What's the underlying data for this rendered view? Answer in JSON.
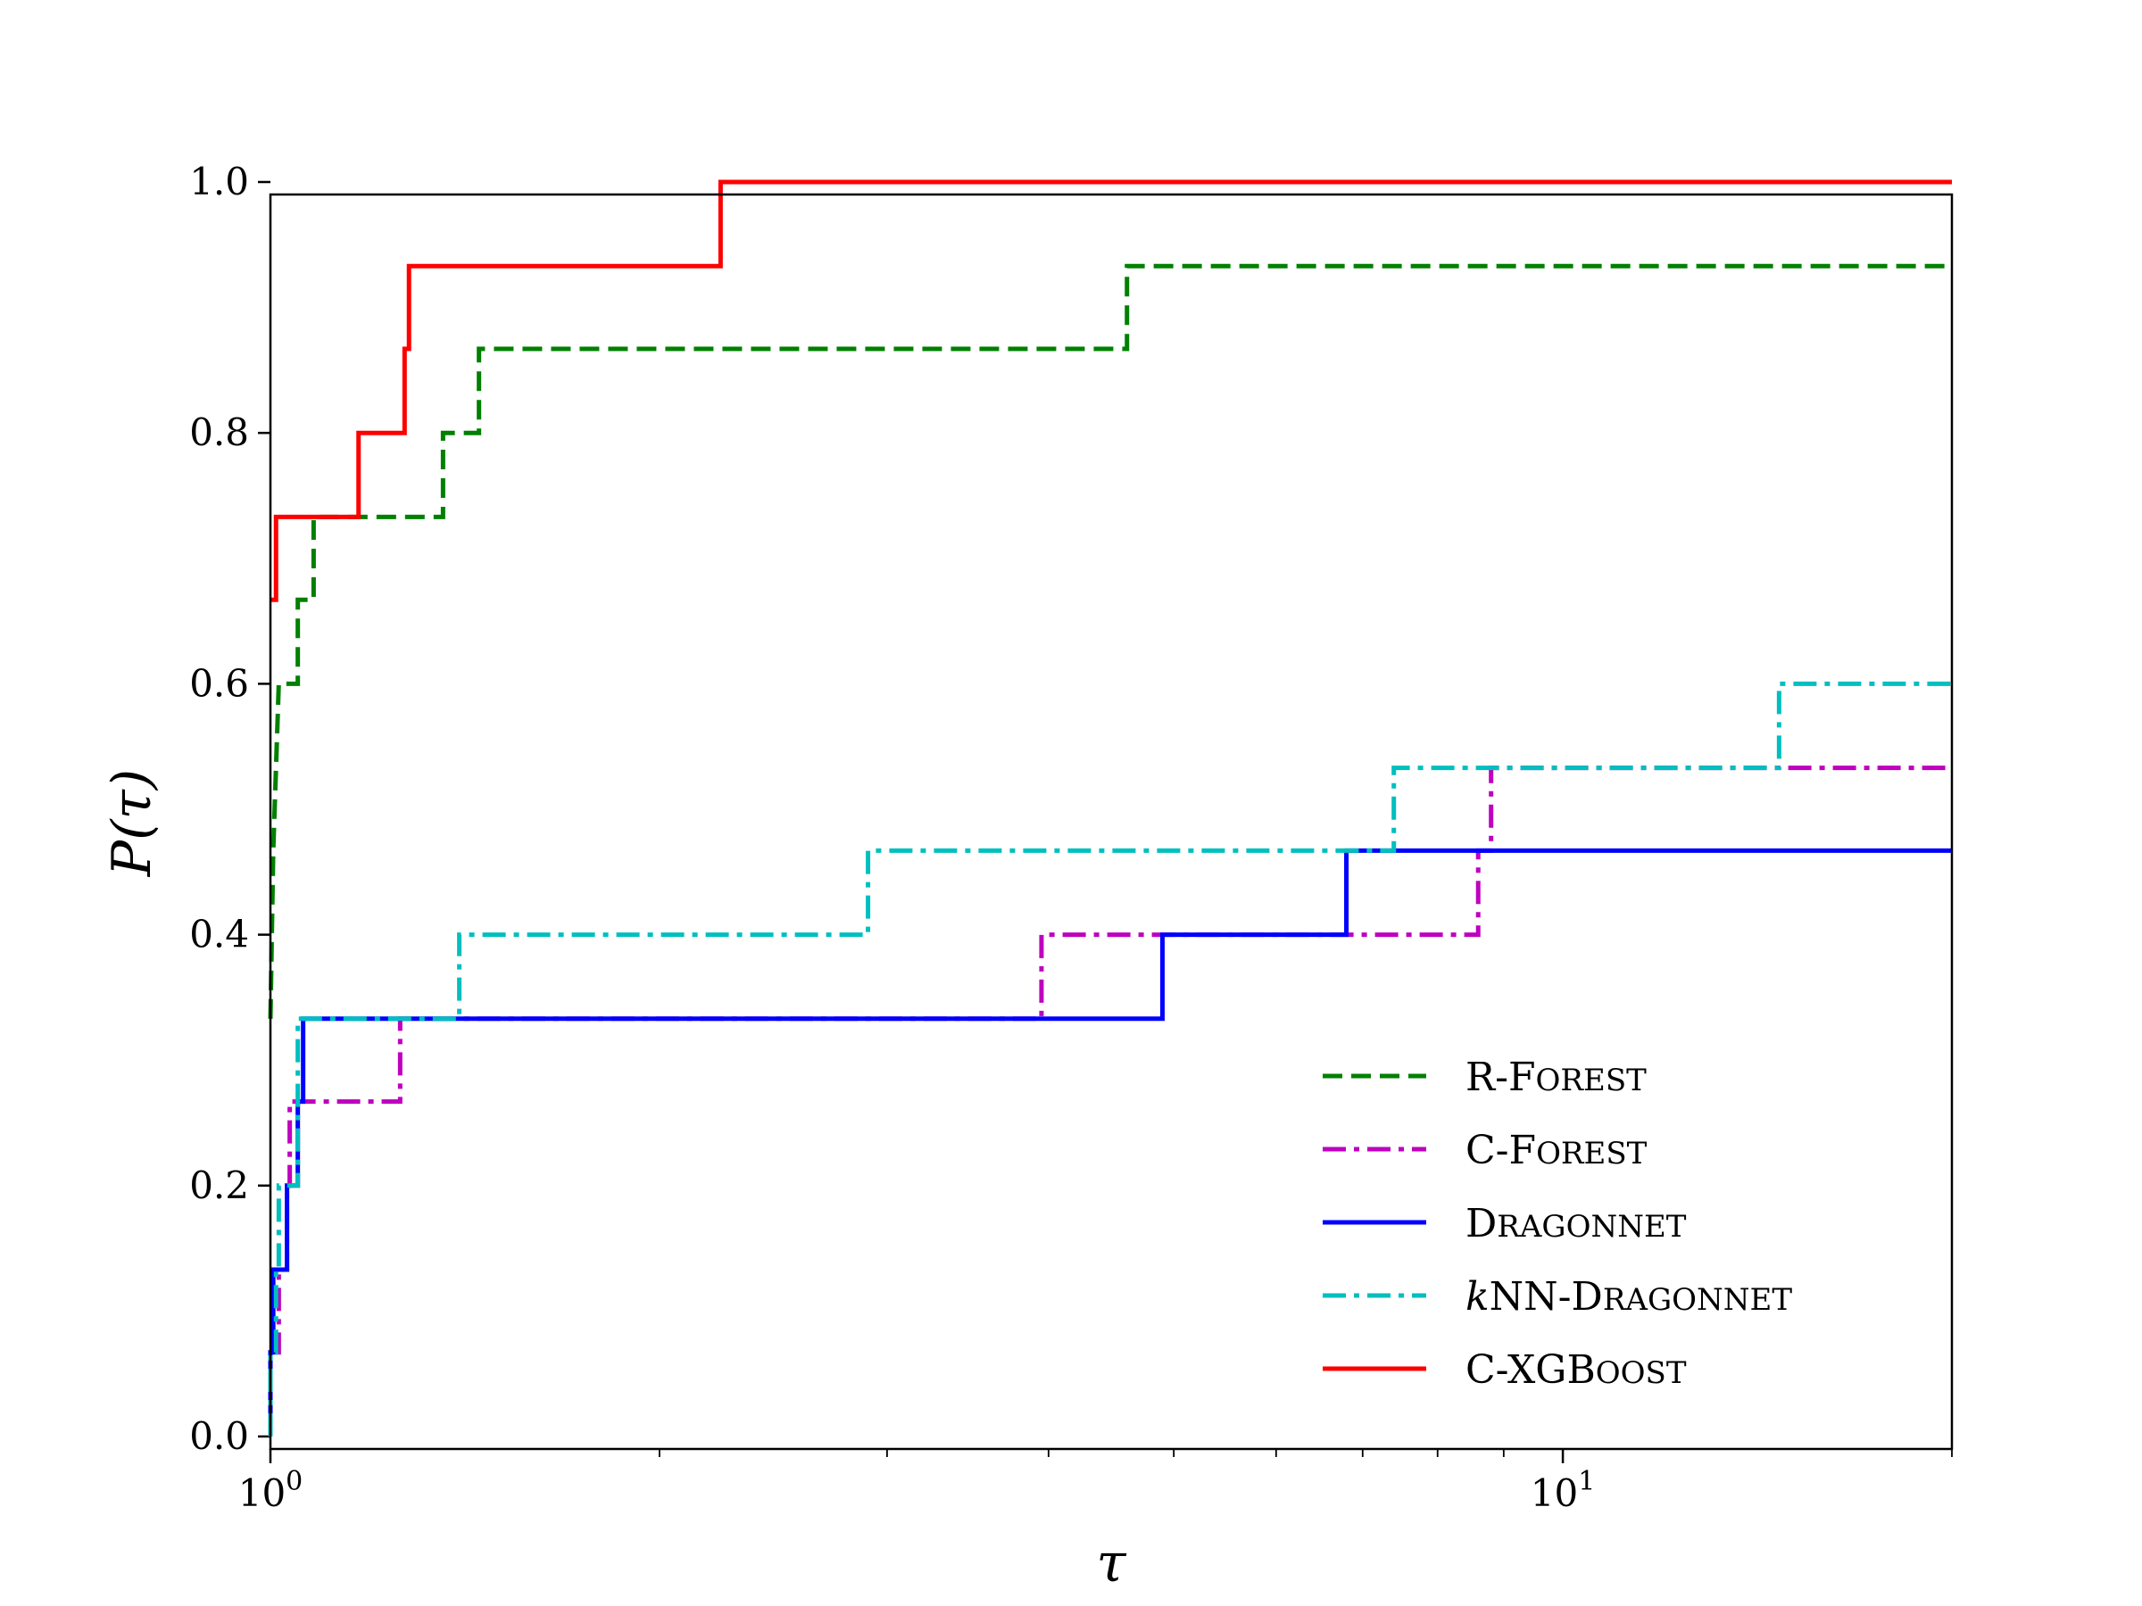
{
  "chart_data": {
    "type": "line",
    "step": "post",
    "xscale": "log",
    "xlim": [
      1,
      20
    ],
    "ylim": [
      0,
      1
    ],
    "xlabel": "τ",
    "ylabel": "P(τ)",
    "xticks": [
      {
        "value": 1,
        "base": "10",
        "exp": "0"
      },
      {
        "value": 10,
        "base": "10",
        "exp": "1"
      }
    ],
    "xminor_ticks": [
      2,
      3,
      4,
      5,
      6,
      7,
      8,
      9,
      20
    ],
    "yticks": [
      {
        "value": 0.0,
        "label": "0.0"
      },
      {
        "value": 0.2,
        "label": "0.2"
      },
      {
        "value": 0.4,
        "label": "0.4"
      },
      {
        "value": 0.6,
        "label": "0.6"
      },
      {
        "value": 0.8,
        "label": "0.8"
      },
      {
        "value": 1.0,
        "label": "1.0"
      }
    ],
    "legend_position": "lower-right",
    "series": [
      {
        "name": "R-Forest",
        "legend_parts": [
          [
            "R-F",
            "normal"
          ],
          [
            "OREST",
            "sc"
          ]
        ],
        "color": "#008000",
        "dash": "dashed",
        "points": [
          [
            1.0,
            0.333
          ],
          [
            1.005,
            0.467
          ],
          [
            1.01,
            0.533
          ],
          [
            1.015,
            0.6
          ],
          [
            1.05,
            0.6
          ],
          [
            1.05,
            0.667
          ],
          [
            1.08,
            0.667
          ],
          [
            1.08,
            0.733
          ],
          [
            1.36,
            0.733
          ],
          [
            1.36,
            0.8
          ],
          [
            1.45,
            0.8
          ],
          [
            1.45,
            0.867
          ],
          [
            4.6,
            0.867
          ],
          [
            4.6,
            0.933
          ],
          [
            20,
            0.933
          ]
        ]
      },
      {
        "name": "C-Forest",
        "legend_parts": [
          [
            "C-F",
            "normal"
          ],
          [
            "OREST",
            "sc"
          ]
        ],
        "color": "#bf00bf",
        "dash": "dashdot",
        "points": [
          [
            1.0,
            0.0
          ],
          [
            1.0,
            0.067
          ],
          [
            1.015,
            0.067
          ],
          [
            1.015,
            0.133
          ],
          [
            1.03,
            0.133
          ],
          [
            1.03,
            0.2
          ],
          [
            1.035,
            0.2
          ],
          [
            1.035,
            0.267
          ],
          [
            1.26,
            0.267
          ],
          [
            1.26,
            0.333
          ],
          [
            3.95,
            0.333
          ],
          [
            3.95,
            0.4
          ],
          [
            8.6,
            0.4
          ],
          [
            8.6,
            0.467
          ],
          [
            8.8,
            0.467
          ],
          [
            8.8,
            0.533
          ],
          [
            20,
            0.533
          ]
        ]
      },
      {
        "name": "Dragonnet",
        "legend_parts": [
          [
            "D",
            "normal"
          ],
          [
            "RAGONNET",
            "sc"
          ]
        ],
        "color": "#0000ff",
        "dash": "solid",
        "points": [
          [
            1.0,
            0.0
          ],
          [
            1.0,
            0.067
          ],
          [
            1.005,
            0.067
          ],
          [
            1.005,
            0.133
          ],
          [
            1.03,
            0.133
          ],
          [
            1.03,
            0.2
          ],
          [
            1.05,
            0.2
          ],
          [
            1.05,
            0.267
          ],
          [
            1.06,
            0.267
          ],
          [
            1.06,
            0.333
          ],
          [
            4.9,
            0.333
          ],
          [
            4.9,
            0.4
          ],
          [
            6.8,
            0.4
          ],
          [
            6.8,
            0.467
          ],
          [
            20,
            0.467
          ]
        ]
      },
      {
        "name": "kNN-Dragonnet",
        "legend_parts": [
          [
            "k",
            "italic"
          ],
          [
            "NN-D",
            "normal"
          ],
          [
            "RAGONNET",
            "sc"
          ]
        ],
        "color": "#00bfbf",
        "dash": "dashdot",
        "points": [
          [
            1.0,
            0.0
          ],
          [
            1.0,
            0.067
          ],
          [
            1.01,
            0.067
          ],
          [
            1.01,
            0.133
          ],
          [
            1.015,
            0.133
          ],
          [
            1.015,
            0.2
          ],
          [
            1.05,
            0.2
          ],
          [
            1.05,
            0.333
          ],
          [
            1.4,
            0.333
          ],
          [
            1.4,
            0.4
          ],
          [
            2.9,
            0.4
          ],
          [
            2.9,
            0.467
          ],
          [
            7.4,
            0.467
          ],
          [
            7.4,
            0.533
          ],
          [
            14.7,
            0.533
          ],
          [
            14.7,
            0.6
          ],
          [
            20,
            0.6
          ]
        ]
      },
      {
        "name": "C-XGBoost",
        "legend_parts": [
          [
            "C-XGB",
            "normal"
          ],
          [
            "OOST",
            "sc"
          ]
        ],
        "color": "#ff0000",
        "dash": "solid",
        "points": [
          [
            1.0,
            0.667
          ],
          [
            1.01,
            0.667
          ],
          [
            1.01,
            0.733
          ],
          [
            1.17,
            0.733
          ],
          [
            1.17,
            0.8
          ],
          [
            1.27,
            0.8
          ],
          [
            1.27,
            0.867
          ],
          [
            1.28,
            0.867
          ],
          [
            1.28,
            0.933
          ],
          [
            2.23,
            0.933
          ],
          [
            2.23,
            1.0
          ],
          [
            20,
            1.0
          ]
        ]
      }
    ]
  }
}
